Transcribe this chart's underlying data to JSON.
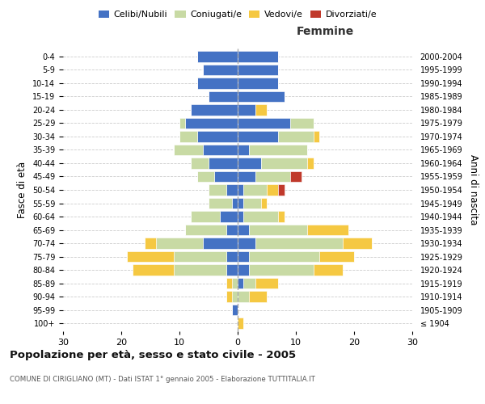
{
  "age_groups": [
    "100+",
    "95-99",
    "90-94",
    "85-89",
    "80-84",
    "75-79",
    "70-74",
    "65-69",
    "60-64",
    "55-59",
    "50-54",
    "45-49",
    "40-44",
    "35-39",
    "30-34",
    "25-29",
    "20-24",
    "15-19",
    "10-14",
    "5-9",
    "0-4"
  ],
  "birth_years": [
    "≤ 1904",
    "1905-1909",
    "1910-1914",
    "1915-1919",
    "1920-1924",
    "1925-1929",
    "1930-1934",
    "1935-1939",
    "1940-1944",
    "1945-1949",
    "1950-1954",
    "1955-1959",
    "1960-1964",
    "1965-1969",
    "1970-1974",
    "1975-1979",
    "1980-1984",
    "1985-1989",
    "1990-1994",
    "1995-1999",
    "2000-2004"
  ],
  "male": {
    "celibi": [
      0,
      1,
      0,
      0,
      2,
      2,
      6,
      2,
      3,
      1,
      2,
      4,
      5,
      6,
      7,
      9,
      8,
      5,
      7,
      6,
      7
    ],
    "coniugati": [
      0,
      0,
      1,
      1,
      9,
      9,
      8,
      7,
      5,
      4,
      3,
      3,
      3,
      5,
      3,
      1,
      0,
      0,
      0,
      0,
      0
    ],
    "vedovi": [
      0,
      0,
      1,
      1,
      7,
      8,
      2,
      0,
      0,
      0,
      0,
      0,
      0,
      0,
      0,
      0,
      0,
      0,
      0,
      0,
      0
    ],
    "divorziati": [
      0,
      0,
      0,
      0,
      0,
      0,
      0,
      0,
      0,
      0,
      0,
      0,
      0,
      0,
      0,
      0,
      0,
      0,
      0,
      0,
      0
    ]
  },
  "female": {
    "nubili": [
      0,
      0,
      0,
      1,
      2,
      2,
      3,
      2,
      1,
      1,
      1,
      3,
      4,
      2,
      7,
      9,
      3,
      8,
      7,
      7,
      7
    ],
    "coniugate": [
      0,
      0,
      2,
      2,
      11,
      12,
      15,
      10,
      6,
      3,
      4,
      6,
      8,
      10,
      6,
      4,
      0,
      0,
      0,
      0,
      0
    ],
    "vedove": [
      1,
      0,
      3,
      4,
      5,
      6,
      5,
      7,
      1,
      1,
      2,
      0,
      1,
      0,
      1,
      0,
      2,
      0,
      0,
      0,
      0
    ],
    "divorziate": [
      0,
      0,
      0,
      0,
      0,
      0,
      0,
      0,
      0,
      0,
      1,
      2,
      0,
      0,
      0,
      0,
      0,
      0,
      0,
      0,
      0
    ]
  },
  "colors": {
    "celibi_nubili": "#4472c4",
    "coniugati": "#c8daa4",
    "vedovi": "#f5c842",
    "divorziati": "#c0392b"
  },
  "xlim": 30,
  "title": "Popolazione per età, sesso e stato civile - 2005",
  "subtitle": "COMUNE DI CIRIGLIANO (MT) - Dati ISTAT 1° gennaio 2005 - Elaborazione TUTTITALIA.IT",
  "ylabel_left": "Fasce di età",
  "ylabel_right": "Anni di nascita",
  "xlabel_female": "Femmine",
  "legend_labels": [
    "Celibi/Nubili",
    "Coniugati/e",
    "Vedovi/e",
    "Divorziati/e"
  ]
}
